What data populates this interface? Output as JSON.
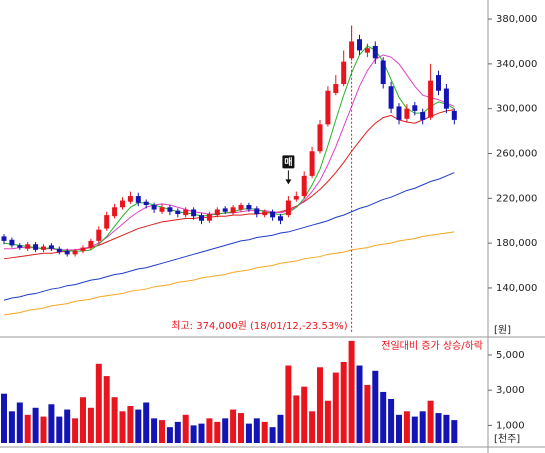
{
  "chart_data": [
    {
      "type": "candlestick",
      "open": [
        186000,
        183000,
        178000,
        175000,
        179000,
        174000,
        178000,
        175000,
        173000,
        170000,
        173000,
        176000,
        182000,
        193000,
        204000,
        212000,
        217000,
        222000,
        217000,
        214000,
        208000,
        212000,
        209000,
        205000,
        210000,
        205000,
        200000,
        205000,
        211000,
        207000,
        210000,
        214000,
        211000,
        205000,
        208000,
        204000,
        205000,
        219000,
        222000,
        240000,
        262000,
        286000,
        314000,
        322000,
        345000,
        362000,
        350000,
        356000,
        343000,
        320000,
        302000,
        291000,
        303000,
        297000,
        292000,
        330000,
        318000,
        298000
      ],
      "high": [
        188000,
        185000,
        180000,
        181000,
        181000,
        179000,
        180000,
        177000,
        175000,
        175000,
        178000,
        184000,
        195000,
        208000,
        215000,
        221000,
        226000,
        225000,
        219000,
        216000,
        215000,
        214000,
        211000,
        212000,
        212000,
        207000,
        208000,
        212000,
        213000,
        214000,
        216000,
        216000,
        213000,
        210000,
        210000,
        206000,
        222000,
        226000,
        244000,
        266000,
        290000,
        320000,
        330000,
        352000,
        374000,
        366000,
        358000,
        360000,
        346000,
        324000,
        305000,
        304000,
        306000,
        300000,
        340000,
        334000,
        322000,
        300000
      ],
      "low": [
        179000,
        176000,
        174000,
        173000,
        172000,
        172000,
        173000,
        170000,
        168000,
        168000,
        171000,
        174000,
        180000,
        191000,
        202000,
        210000,
        215000,
        213000,
        211000,
        207000,
        206000,
        205000,
        203000,
        203000,
        201000,
        197000,
        198000,
        203000,
        206000,
        205000,
        208000,
        208000,
        203000,
        203000,
        200000,
        197000,
        203000,
        217000,
        220000,
        238000,
        260000,
        284000,
        312000,
        320000,
        343000,
        348000,
        346000,
        340000,
        318000,
        296000,
        286000,
        288000,
        294000,
        286000,
        290000,
        312000,
        296000,
        286000
      ],
      "close": [
        182000,
        178000,
        176000,
        179000,
        174000,
        177000,
        175000,
        172000,
        170000,
        173000,
        176000,
        182000,
        192000,
        205000,
        212000,
        218000,
        222000,
        216000,
        214000,
        210000,
        212000,
        208000,
        206000,
        210000,
        204000,
        200000,
        206000,
        210000,
        208000,
        212000,
        214000,
        210000,
        206000,
        208000,
        203000,
        200000,
        218000,
        222000,
        240000,
        262000,
        286000,
        316000,
        322000,
        342000,
        360000,
        352000,
        354000,
        345000,
        322000,
        300000,
        290000,
        300000,
        298000,
        290000,
        325000,
        316000,
        300000,
        290000
      ],
      "up_color": "#e8141e",
      "down_color": "#1414b4",
      "series": [
        {
          "color": "#f5a623",
          "values": [
            116000,
            117000,
            118000,
            120000,
            121000,
            122000,
            124000,
            125000,
            126000,
            128000,
            129000,
            130000,
            132000,
            133000,
            134000,
            135000,
            137000,
            138000,
            139000,
            141000,
            142000,
            143000,
            145000,
            146000,
            147000,
            149000,
            150000,
            151000,
            152000,
            154000,
            155000,
            156000,
            158000,
            159000,
            160000,
            162000,
            163000,
            164000,
            166000,
            167000,
            168000,
            170000,
            171000,
            172000,
            174000,
            175000,
            176000,
            178000,
            179000,
            180000,
            182000,
            183000,
            184000,
            186000,
            187000,
            188000,
            189000,
            190000
          ]
        },
        {
          "color": "#1e3cc8",
          "values": [
            129000,
            131000,
            132000,
            134000,
            135000,
            137000,
            139000,
            140000,
            142000,
            143000,
            145000,
            147000,
            148000,
            150000,
            152000,
            153000,
            155000,
            157000,
            158000,
            160000,
            162000,
            164000,
            166000,
            168000,
            170000,
            172000,
            174000,
            176000,
            178000,
            180000,
            182000,
            183000,
            185000,
            186000,
            187000,
            189000,
            190000,
            192000,
            194000,
            196000,
            198000,
            200000,
            203000,
            205000,
            208000,
            211000,
            213000,
            216000,
            219000,
            221000,
            224000,
            227000,
            229000,
            232000,
            235000,
            237000,
            240000,
            243000
          ]
        },
        {
          "color": "#e01e1e",
          "values": [
            166000,
            167000,
            168000,
            169000,
            170000,
            171000,
            171000,
            172000,
            173000,
            174000,
            175000,
            176000,
            178000,
            181000,
            184000,
            187000,
            190000,
            193000,
            195000,
            197000,
            199000,
            200000,
            201000,
            202000,
            202000,
            203000,
            203000,
            204000,
            204000,
            205000,
            205000,
            206000,
            206000,
            207000,
            207000,
            208000,
            210000,
            213000,
            217000,
            222000,
            228000,
            235000,
            243000,
            252000,
            262000,
            271000,
            280000,
            287000,
            292000,
            294000,
            290000,
            288000,
            287000,
            290000,
            293000,
            296000,
            298000,
            299000
          ]
        },
        {
          "color": "#e040c8",
          "values": [
            175000,
            175000,
            176000,
            176000,
            176000,
            175000,
            175000,
            174000,
            174000,
            174000,
            175000,
            177000,
            180000,
            185000,
            191000,
            197000,
            203000,
            208000,
            212000,
            214000,
            215000,
            214000,
            212000,
            210000,
            208000,
            207000,
            206000,
            206000,
            207000,
            207000,
            208000,
            209000,
            209000,
            209000,
            208000,
            207000,
            209000,
            212000,
            218000,
            226000,
            236000,
            250000,
            266000,
            284000,
            302000,
            320000,
            334000,
            344000,
            348000,
            346000,
            340000,
            330000,
            320000,
            312000,
            310000,
            308000,
            305000,
            302000
          ]
        },
        {
          "color": "#28b428",
          "values": [
            180000,
            179000,
            178000,
            177000,
            176000,
            175000,
            176000,
            174000,
            173000,
            173000,
            173000,
            174000,
            179000,
            186000,
            195000,
            204000,
            212000,
            216000,
            216000,
            214000,
            212000,
            210000,
            208000,
            207000,
            206000,
            204000,
            205000,
            206000,
            207000,
            208000,
            210000,
            211000,
            210000,
            208000,
            207000,
            205000,
            207000,
            212000,
            220000,
            232000,
            246000,
            267000,
            290000,
            312000,
            332000,
            348000,
            356000,
            352000,
            342000,
            326000,
            310000,
            300000,
            296000,
            296000,
            302000,
            306000,
            304000,
            300000
          ]
        }
      ],
      "ylim": [
        98000,
        397000
      ],
      "yticks": [
        {
          "value": 140000,
          "label": "140,000"
        },
        {
          "value": 180000,
          "label": "180,000"
        },
        {
          "value": 220000,
          "label": "220,000"
        },
        {
          "value": 260000,
          "label": "260,000"
        },
        {
          "value": 300000,
          "label": "300,000"
        },
        {
          "value": 340000,
          "label": "340,000"
        },
        {
          "value": 380000,
          "label": "380,000"
        }
      ],
      "y_unit_label": "[원]",
      "max_annotation": "최고: 374,000원 (18/01/12,-23.53%)",
      "signal": {
        "text": "매",
        "index": 36
      }
    },
    {
      "type": "bar",
      "values": [
        2800,
        1800,
        2300,
        1600,
        2000,
        1500,
        2200,
        1500,
        1900,
        1400,
        2600,
        2000,
        4500,
        3800,
        2600,
        1800,
        2100,
        1900,
        2300,
        1400,
        1300,
        900,
        1200,
        1600,
        1000,
        1100,
        1400,
        1200,
        1400,
        1900,
        1700,
        1100,
        1400,
        1200,
        900,
        1600,
        4400,
        2700,
        3200,
        1800,
        4300,
        2400,
        4000,
        4600,
        5800,
        4400,
        3300,
        4100,
        2900,
        2500,
        1600,
        1800,
        1500,
        1800,
        2400,
        1700,
        1600,
        1300
      ],
      "ylim": [
        0,
        5850
      ],
      "yticks": [
        {
          "value": 1000,
          "label": "1,000"
        },
        {
          "value": 3000,
          "label": "3,000"
        },
        {
          "value": 5000,
          "label": "5,000"
        }
      ],
      "y_unit_label": "[천주]",
      "legend_text": "전일대비 증가 상승/하락"
    }
  ]
}
